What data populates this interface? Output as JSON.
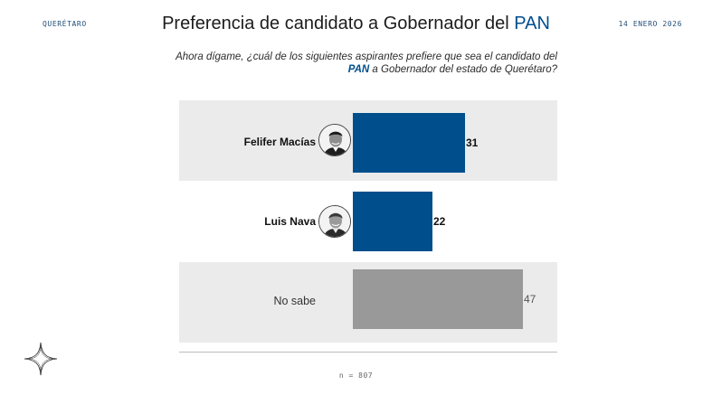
{
  "header": {
    "region": "QUERÉTARO",
    "date": "14 ENERO 2026",
    "title_main": "Preferencia de candidato a Gobernador del ",
    "title_highlight": "PAN"
  },
  "question": {
    "line1": "Ahora dígame, ¿cuál de los siguientes aspirantes prefiere que sea el candidato del",
    "line2_highlight": "PAN",
    "line2_rest": " a Gobernador del estado de Querétaro?"
  },
  "footer": {
    "sample": "n = 807"
  },
  "colors": {
    "primary": "#004e8c",
    "neutral": "#999999",
    "row_bg": "#ebebeb"
  },
  "chart_data": {
    "type": "bar",
    "orientation": "horizontal",
    "categories": [
      "Felifer Macías",
      "Luis Nava",
      "No sabe"
    ],
    "values": [
      31,
      22,
      47
    ],
    "value_labels": [
      "31",
      "22",
      "47"
    ],
    "xlim": [
      0,
      100
    ],
    "grid": false,
    "legend": "none",
    "bar_colors": [
      "#004e8c",
      "#004e8c",
      "#999999"
    ]
  }
}
